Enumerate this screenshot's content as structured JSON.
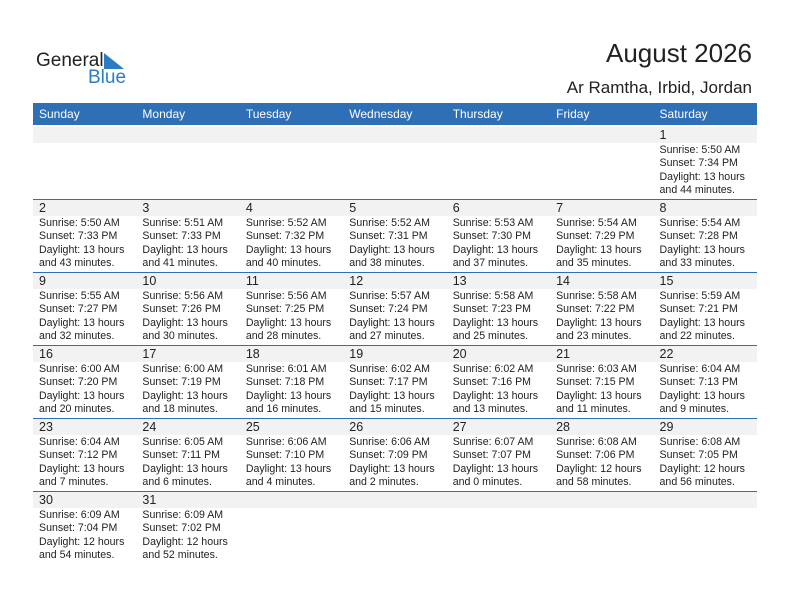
{
  "logo": {
    "text_general": "General",
    "text_blue": "Blue",
    "accent": "#2c7cc4"
  },
  "header": {
    "title": "August 2026",
    "subtitle": "Ar Ramtha, Irbid, Jordan"
  },
  "colors": {
    "header_bg": "#2e6fb5",
    "day_band": "#f2f2f2"
  },
  "weekdays": [
    "Sunday",
    "Monday",
    "Tuesday",
    "Wednesday",
    "Thursday",
    "Friday",
    "Saturday"
  ],
  "weeks": [
    [
      null,
      null,
      null,
      null,
      null,
      null,
      {
        "d": "1",
        "rise": "Sunrise: 5:50 AM",
        "set": "Sunset: 7:34 PM",
        "dl": "Daylight: 13 hours",
        "dm": "and 44 minutes."
      }
    ],
    [
      {
        "d": "2",
        "rise": "Sunrise: 5:50 AM",
        "set": "Sunset: 7:33 PM",
        "dl": "Daylight: 13 hours",
        "dm": "and 43 minutes."
      },
      {
        "d": "3",
        "rise": "Sunrise: 5:51 AM",
        "set": "Sunset: 7:33 PM",
        "dl": "Daylight: 13 hours",
        "dm": "and 41 minutes."
      },
      {
        "d": "4",
        "rise": "Sunrise: 5:52 AM",
        "set": "Sunset: 7:32 PM",
        "dl": "Daylight: 13 hours",
        "dm": "and 40 minutes."
      },
      {
        "d": "5",
        "rise": "Sunrise: 5:52 AM",
        "set": "Sunset: 7:31 PM",
        "dl": "Daylight: 13 hours",
        "dm": "and 38 minutes."
      },
      {
        "d": "6",
        "rise": "Sunrise: 5:53 AM",
        "set": "Sunset: 7:30 PM",
        "dl": "Daylight: 13 hours",
        "dm": "and 37 minutes."
      },
      {
        "d": "7",
        "rise": "Sunrise: 5:54 AM",
        "set": "Sunset: 7:29 PM",
        "dl": "Daylight: 13 hours",
        "dm": "and 35 minutes."
      },
      {
        "d": "8",
        "rise": "Sunrise: 5:54 AM",
        "set": "Sunset: 7:28 PM",
        "dl": "Daylight: 13 hours",
        "dm": "and 33 minutes."
      }
    ],
    [
      {
        "d": "9",
        "rise": "Sunrise: 5:55 AM",
        "set": "Sunset: 7:27 PM",
        "dl": "Daylight: 13 hours",
        "dm": "and 32 minutes."
      },
      {
        "d": "10",
        "rise": "Sunrise: 5:56 AM",
        "set": "Sunset: 7:26 PM",
        "dl": "Daylight: 13 hours",
        "dm": "and 30 minutes."
      },
      {
        "d": "11",
        "rise": "Sunrise: 5:56 AM",
        "set": "Sunset: 7:25 PM",
        "dl": "Daylight: 13 hours",
        "dm": "and 28 minutes."
      },
      {
        "d": "12",
        "rise": "Sunrise: 5:57 AM",
        "set": "Sunset: 7:24 PM",
        "dl": "Daylight: 13 hours",
        "dm": "and 27 minutes."
      },
      {
        "d": "13",
        "rise": "Sunrise: 5:58 AM",
        "set": "Sunset: 7:23 PM",
        "dl": "Daylight: 13 hours",
        "dm": "and 25 minutes."
      },
      {
        "d": "14",
        "rise": "Sunrise: 5:58 AM",
        "set": "Sunset: 7:22 PM",
        "dl": "Daylight: 13 hours",
        "dm": "and 23 minutes."
      },
      {
        "d": "15",
        "rise": "Sunrise: 5:59 AM",
        "set": "Sunset: 7:21 PM",
        "dl": "Daylight: 13 hours",
        "dm": "and 22 minutes."
      }
    ],
    [
      {
        "d": "16",
        "rise": "Sunrise: 6:00 AM",
        "set": "Sunset: 7:20 PM",
        "dl": "Daylight: 13 hours",
        "dm": "and 20 minutes."
      },
      {
        "d": "17",
        "rise": "Sunrise: 6:00 AM",
        "set": "Sunset: 7:19 PM",
        "dl": "Daylight: 13 hours",
        "dm": "and 18 minutes."
      },
      {
        "d": "18",
        "rise": "Sunrise: 6:01 AM",
        "set": "Sunset: 7:18 PM",
        "dl": "Daylight: 13 hours",
        "dm": "and 16 minutes."
      },
      {
        "d": "19",
        "rise": "Sunrise: 6:02 AM",
        "set": "Sunset: 7:17 PM",
        "dl": "Daylight: 13 hours",
        "dm": "and 15 minutes."
      },
      {
        "d": "20",
        "rise": "Sunrise: 6:02 AM",
        "set": "Sunset: 7:16 PM",
        "dl": "Daylight: 13 hours",
        "dm": "and 13 minutes."
      },
      {
        "d": "21",
        "rise": "Sunrise: 6:03 AM",
        "set": "Sunset: 7:15 PM",
        "dl": "Daylight: 13 hours",
        "dm": "and 11 minutes."
      },
      {
        "d": "22",
        "rise": "Sunrise: 6:04 AM",
        "set": "Sunset: 7:13 PM",
        "dl": "Daylight: 13 hours",
        "dm": "and 9 minutes."
      }
    ],
    [
      {
        "d": "23",
        "rise": "Sunrise: 6:04 AM",
        "set": "Sunset: 7:12 PM",
        "dl": "Daylight: 13 hours",
        "dm": "and 7 minutes."
      },
      {
        "d": "24",
        "rise": "Sunrise: 6:05 AM",
        "set": "Sunset: 7:11 PM",
        "dl": "Daylight: 13 hours",
        "dm": "and 6 minutes."
      },
      {
        "d": "25",
        "rise": "Sunrise: 6:06 AM",
        "set": "Sunset: 7:10 PM",
        "dl": "Daylight: 13 hours",
        "dm": "and 4 minutes."
      },
      {
        "d": "26",
        "rise": "Sunrise: 6:06 AM",
        "set": "Sunset: 7:09 PM",
        "dl": "Daylight: 13 hours",
        "dm": "and 2 minutes."
      },
      {
        "d": "27",
        "rise": "Sunrise: 6:07 AM",
        "set": "Sunset: 7:07 PM",
        "dl": "Daylight: 13 hours",
        "dm": "and 0 minutes."
      },
      {
        "d": "28",
        "rise": "Sunrise: 6:08 AM",
        "set": "Sunset: 7:06 PM",
        "dl": "Daylight: 12 hours",
        "dm": "and 58 minutes."
      },
      {
        "d": "29",
        "rise": "Sunrise: 6:08 AM",
        "set": "Sunset: 7:05 PM",
        "dl": "Daylight: 12 hours",
        "dm": "and 56 minutes."
      }
    ],
    [
      {
        "d": "30",
        "rise": "Sunrise: 6:09 AM",
        "set": "Sunset: 7:04 PM",
        "dl": "Daylight: 12 hours",
        "dm": "and 54 minutes."
      },
      {
        "d": "31",
        "rise": "Sunrise: 6:09 AM",
        "set": "Sunset: 7:02 PM",
        "dl": "Daylight: 12 hours",
        "dm": "and 52 minutes."
      },
      null,
      null,
      null,
      null,
      null
    ]
  ]
}
